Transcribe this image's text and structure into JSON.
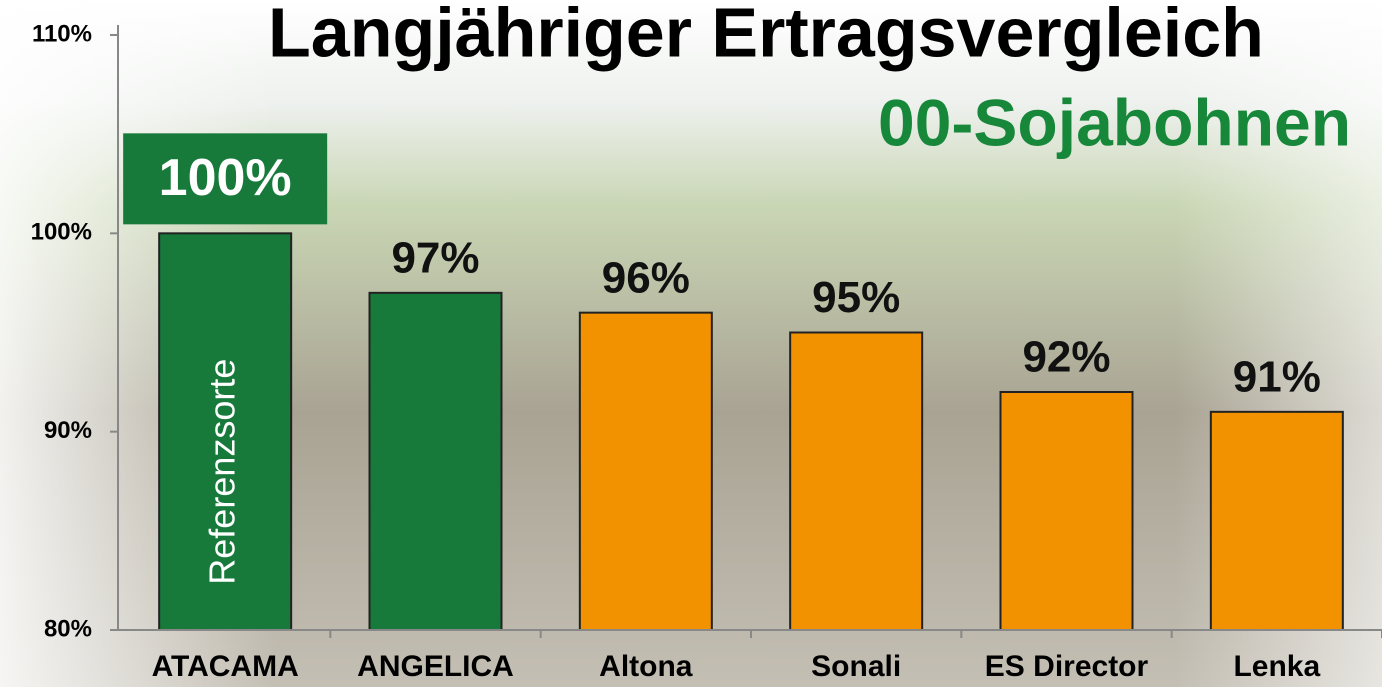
{
  "chart_data": {
    "type": "bar",
    "title": "Langjähriger Ertragsvergleich",
    "subtitle": "00-Sojabohnen",
    "annotation": "Referenzsorte",
    "categories": [
      "ATACAMA",
      "ANGELICA",
      "Altona",
      "Sonali",
      "ES Director",
      "Lenka"
    ],
    "values": [
      100,
      97,
      96,
      95,
      92,
      91
    ],
    "value_labels": [
      "100%",
      "97%",
      "96%",
      "95%",
      "92%",
      "91%"
    ],
    "colors": [
      "#17793a",
      "#17793a",
      "#f39200",
      "#f39200",
      "#f39200",
      "#f39200"
    ],
    "ylim": [
      80,
      110
    ],
    "yticks": [
      {
        "value": 80,
        "label": "80%"
      },
      {
        "value": 90,
        "label": "90%"
      },
      {
        "value": 100,
        "label": "100%"
      },
      {
        "value": 110,
        "label": "110%"
      }
    ],
    "grid": false
  }
}
